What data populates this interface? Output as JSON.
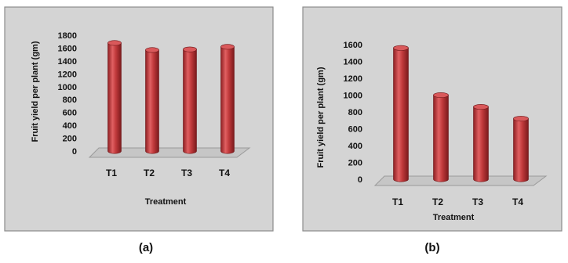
{
  "chart_data": [
    {
      "type": "bar",
      "categories": [
        "T1",
        "T2",
        "T3",
        "T4"
      ],
      "values": [
        1680,
        1570,
        1580,
        1620
      ],
      "xlabel": "Treatment",
      "ylabel": "Fruit yield per plant (gm)",
      "ylim": [
        0,
        1800
      ],
      "yticks": [
        "0",
        "200",
        "400",
        "600",
        "800",
        "1000",
        "1200",
        "1400",
        "1600",
        "1800"
      ],
      "caption": "(a)",
      "bar_color": "#c0393b",
      "background": "#d4d4d4",
      "grid": false,
      "style": "3d-cylinder"
    },
    {
      "type": "bar",
      "categories": [
        "T1",
        "T2",
        "T3",
        "T4"
      ],
      "values": [
        1560,
        1000,
        860,
        720
      ],
      "xlabel": "Treatment",
      "ylabel": "Fruit yield per plant (gm)",
      "ylim": [
        0,
        1600
      ],
      "yticks": [
        "0",
        "200",
        "400",
        "600",
        "800",
        "1000",
        "1200",
        "1400",
        "1600"
      ],
      "caption": "(b)",
      "bar_color": "#c0393b",
      "background": "#d4d4d4",
      "grid": false,
      "style": "3d-cylinder"
    }
  ]
}
